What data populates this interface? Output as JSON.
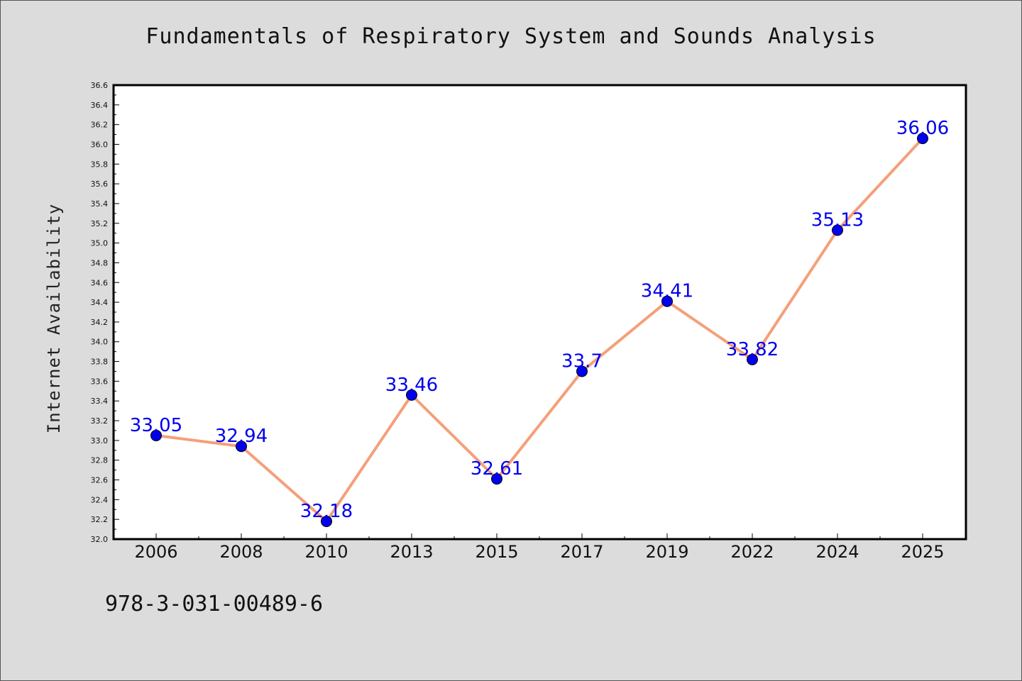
{
  "chart_data": {
    "type": "line",
    "title": "Fundamentals of Respiratory System and Sounds Analysis",
    "xlabel": "",
    "ylabel": "Internet Availability",
    "categories": [
      "2006",
      "2008",
      "2010",
      "2013",
      "2015",
      "2017",
      "2019",
      "2022",
      "2024",
      "2025"
    ],
    "values": [
      33.05,
      32.94,
      32.18,
      33.46,
      32.61,
      33.7,
      34.41,
      33.82,
      35.13,
      36.06
    ],
    "data_labels": [
      "33.05",
      "32.94",
      "32.18",
      "33.46",
      "32.61",
      "33.7",
      "34.41",
      "33.82",
      "35.13",
      "36.06"
    ],
    "ylim": [
      32.0,
      36.6
    ],
    "y_ticks": [
      "32.0",
      "32.2",
      "32.4",
      "32.6",
      "32.8",
      "33.0",
      "33.2",
      "33.4",
      "33.6",
      "33.8",
      "34.0",
      "34.2",
      "34.4",
      "34.6",
      "34.8",
      "35.0",
      "35.2",
      "35.4",
      "35.6",
      "35.8",
      "36.0",
      "36.2",
      "36.4",
      "36.6"
    ],
    "grid": false,
    "line_color": "#f4a07a",
    "marker_color": "#0000ee",
    "label_color": "#0000ee"
  },
  "footer": {
    "isbn": "978-3-031-00489-6"
  }
}
